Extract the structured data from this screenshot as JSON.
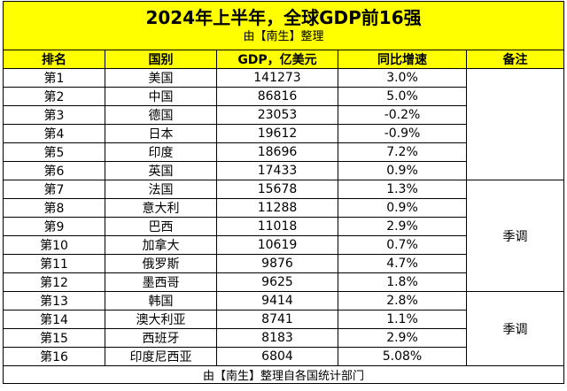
{
  "title": "2024年上半年，全球GDP前16强",
  "subtitle": "由【南生】整理",
  "headers": [
    "排名",
    "国别",
    "GDP，亿美元",
    "同比增速",
    "备注"
  ],
  "rows": [
    {
      "rank": "第1",
      "country": "美国",
      "gdp": "141273",
      "growth": "3.0%"
    },
    {
      "rank": "第2",
      "country": "中国",
      "gdp": "86816",
      "growth": "5.0%"
    },
    {
      "rank": "第3",
      "country": "德国",
      "gdp": "23053",
      "growth": "-0.2%"
    },
    {
      "rank": "第4",
      "country": "日本",
      "gdp": "19612",
      "growth": "-0.9%"
    },
    {
      "rank": "第5",
      "country": "印度",
      "gdp": "18696",
      "growth": "7.2%"
    },
    {
      "rank": "第6",
      "country": "英国",
      "gdp": "17433",
      "growth": "0.9%"
    },
    {
      "rank": "第7",
      "country": "法国",
      "gdp": "15678",
      "growth": "1.3%"
    },
    {
      "rank": "第8",
      "country": "意大利",
      "gdp": "11288",
      "growth": "0.9%"
    },
    {
      "rank": "第9",
      "country": "巴西",
      "gdp": "11018",
      "growth": "2.9%"
    },
    {
      "rank": "第10",
      "country": "加拿大",
      "gdp": "10619",
      "growth": "0.7%"
    },
    {
      "rank": "第11",
      "country": "俄罗斯",
      "gdp": "9876",
      "growth": "4.7%"
    },
    {
      "rank": "第12",
      "country": "墨西哥",
      "gdp": "9625",
      "growth": "1.8%"
    },
    {
      "rank": "第13",
      "country": "韩国",
      "gdp": "9414",
      "growth": "2.8%"
    },
    {
      "rank": "第14",
      "country": "澳大利亚",
      "gdp": "8741",
      "growth": "1.1%"
    },
    {
      "rank": "第15",
      "country": "西班牙",
      "gdp": "8183",
      "growth": "2.9%"
    },
    {
      "rank": "第16",
      "country": "印度尼西亚",
      "gdp": "6804",
      "growth": "5.08%"
    }
  ],
  "notes": {
    "note_1": "季调",
    "note_2": "季调"
  },
  "footer": "由【南生】整理自各国统计部门",
  "colors": {
    "header_bg": "#ffff00",
    "border": "#000000"
  }
}
